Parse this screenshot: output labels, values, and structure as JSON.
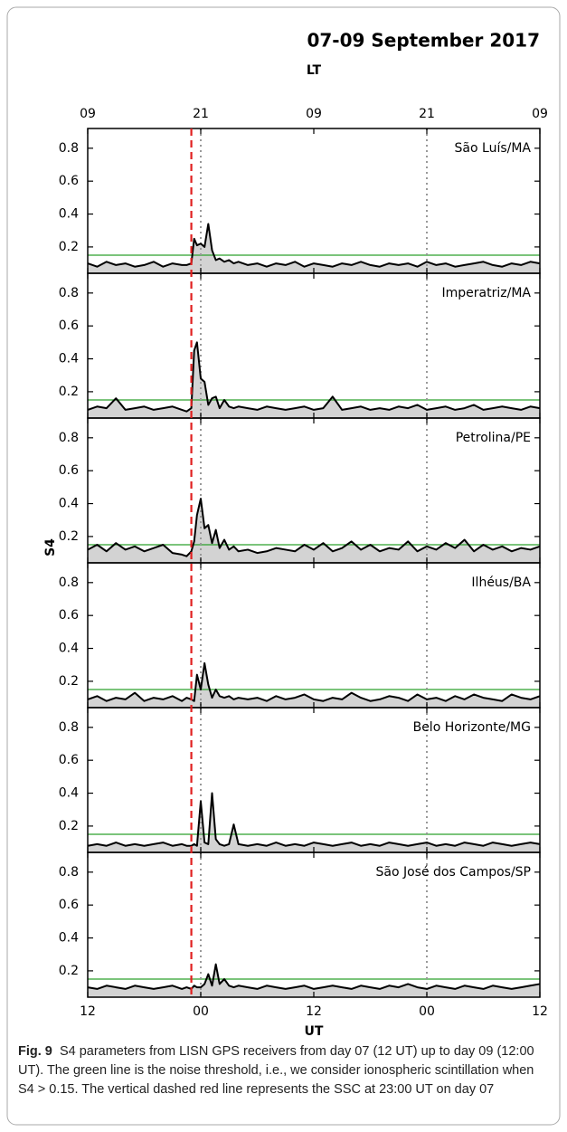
{
  "title": "07-09 September 2017",
  "top_label": "LT",
  "xlabel": "UT",
  "ylabel": "S4",
  "top_xticks": [
    {
      "value": 0,
      "label": "09"
    },
    {
      "value": 12,
      "label": "21"
    },
    {
      "value": 24,
      "label": "09"
    },
    {
      "value": 36,
      "label": "21"
    },
    {
      "value": 48,
      "label": "09"
    }
  ],
  "threshold": 0.15,
  "threshold_color": "#2ca02c",
  "ssc_x": 11,
  "ssc_color": "#e02020",
  "dotted_x": [
    12,
    36
  ],
  "chart_data": [
    {
      "type": "line",
      "title": "São Luís/MA",
      "color": "#000000",
      "fill": "#d3d3d3",
      "xlim": [
        0,
        48
      ],
      "ylim": [
        0.04,
        0.92
      ],
      "yticks": [
        0.2,
        0.4,
        0.6,
        0.8
      ],
      "x": [
        0,
        1,
        2,
        3,
        4,
        5,
        6,
        7,
        8,
        9,
        10,
        10.5,
        11,
        11.3,
        11.6,
        12,
        12.4,
        12.8,
        13.2,
        13.6,
        14,
        14.5,
        15,
        15.5,
        16,
        17,
        18,
        19,
        20,
        21,
        22,
        23,
        24,
        25,
        26,
        27,
        28,
        29,
        30,
        31,
        32,
        33,
        34,
        35,
        36,
        37,
        38,
        39,
        40,
        41,
        42,
        43,
        44,
        45,
        46,
        47,
        48
      ],
      "values": [
        0.1,
        0.08,
        0.11,
        0.09,
        0.1,
        0.08,
        0.09,
        0.11,
        0.08,
        0.1,
        0.09,
        0.09,
        0.1,
        0.25,
        0.21,
        0.22,
        0.2,
        0.34,
        0.18,
        0.12,
        0.13,
        0.11,
        0.12,
        0.1,
        0.11,
        0.09,
        0.1,
        0.08,
        0.1,
        0.09,
        0.11,
        0.08,
        0.1,
        0.09,
        0.08,
        0.1,
        0.09,
        0.11,
        0.09,
        0.08,
        0.1,
        0.09,
        0.1,
        0.08,
        0.11,
        0.09,
        0.1,
        0.08,
        0.09,
        0.1,
        0.11,
        0.09,
        0.08,
        0.1,
        0.09,
        0.11,
        0.1
      ]
    },
    {
      "type": "line",
      "title": "Imperatriz/MA",
      "color": "#000000",
      "fill": "#d3d3d3",
      "xlim": [
        0,
        48
      ],
      "ylim": [
        0.04,
        0.92
      ],
      "yticks": [
        0.2,
        0.4,
        0.6,
        0.8
      ],
      "x": [
        0,
        1,
        2,
        3,
        4,
        5,
        6,
        7,
        8,
        9,
        10,
        10.5,
        11,
        11.3,
        11.6,
        12,
        12.4,
        12.8,
        13.2,
        13.6,
        14,
        14.5,
        15,
        15.5,
        16,
        17,
        18,
        19,
        20,
        21,
        22,
        23,
        24,
        25,
        26,
        27,
        28,
        29,
        30,
        31,
        32,
        33,
        34,
        35,
        36,
        37,
        38,
        39,
        40,
        41,
        42,
        43,
        44,
        45,
        46,
        47,
        48
      ],
      "values": [
        0.09,
        0.11,
        0.1,
        0.16,
        0.09,
        0.1,
        0.11,
        0.09,
        0.1,
        0.11,
        0.09,
        0.08,
        0.1,
        0.45,
        0.5,
        0.28,
        0.26,
        0.12,
        0.16,
        0.17,
        0.1,
        0.15,
        0.11,
        0.1,
        0.11,
        0.1,
        0.09,
        0.11,
        0.1,
        0.09,
        0.1,
        0.11,
        0.09,
        0.1,
        0.17,
        0.09,
        0.1,
        0.11,
        0.09,
        0.1,
        0.09,
        0.11,
        0.1,
        0.12,
        0.09,
        0.1,
        0.11,
        0.09,
        0.1,
        0.12,
        0.09,
        0.1,
        0.11,
        0.1,
        0.09,
        0.11,
        0.1
      ]
    },
    {
      "type": "line",
      "title": "Petrolina/PE",
      "color": "#000000",
      "fill": "#d3d3d3",
      "xlim": [
        0,
        48
      ],
      "ylim": [
        0.04,
        0.92
      ],
      "yticks": [
        0.2,
        0.4,
        0.6,
        0.8
      ],
      "x": [
        0,
        1,
        2,
        3,
        4,
        5,
        6,
        7,
        8,
        9,
        10,
        10.5,
        11,
        11.3,
        11.6,
        12,
        12.4,
        12.8,
        13.2,
        13.6,
        14,
        14.5,
        15,
        15.5,
        16,
        17,
        18,
        19,
        20,
        21,
        22,
        23,
        24,
        25,
        26,
        27,
        28,
        29,
        30,
        31,
        32,
        33,
        34,
        35,
        36,
        37,
        38,
        39,
        40,
        41,
        42,
        43,
        44,
        45,
        46,
        47,
        48
      ],
      "values": [
        0.12,
        0.15,
        0.11,
        0.16,
        0.12,
        0.14,
        0.11,
        0.13,
        0.15,
        0.1,
        0.09,
        0.08,
        0.11,
        0.17,
        0.33,
        0.43,
        0.25,
        0.27,
        0.16,
        0.24,
        0.13,
        0.18,
        0.12,
        0.14,
        0.11,
        0.12,
        0.1,
        0.11,
        0.13,
        0.12,
        0.11,
        0.15,
        0.12,
        0.16,
        0.11,
        0.13,
        0.17,
        0.12,
        0.15,
        0.11,
        0.13,
        0.12,
        0.17,
        0.11,
        0.14,
        0.12,
        0.16,
        0.13,
        0.18,
        0.11,
        0.15,
        0.12,
        0.14,
        0.11,
        0.13,
        0.12,
        0.14
      ]
    },
    {
      "type": "line",
      "title": "Ilhéus/BA",
      "color": "#000000",
      "fill": "#d3d3d3",
      "xlim": [
        0,
        48
      ],
      "ylim": [
        0.04,
        0.92
      ],
      "yticks": [
        0.2,
        0.4,
        0.6,
        0.8
      ],
      "x": [
        0,
        1,
        2,
        3,
        4,
        5,
        6,
        7,
        8,
        9,
        10,
        10.5,
        11,
        11.3,
        11.6,
        12,
        12.4,
        12.8,
        13.2,
        13.6,
        14,
        14.5,
        15,
        15.5,
        16,
        17,
        18,
        19,
        20,
        21,
        22,
        23,
        24,
        25,
        26,
        27,
        28,
        29,
        30,
        31,
        32,
        33,
        34,
        35,
        36,
        37,
        38,
        39,
        40,
        41,
        42,
        43,
        44,
        45,
        46,
        47,
        48
      ],
      "values": [
        0.09,
        0.11,
        0.08,
        0.1,
        0.09,
        0.13,
        0.08,
        0.1,
        0.09,
        0.11,
        0.08,
        0.1,
        0.09,
        0.08,
        0.24,
        0.15,
        0.31,
        0.18,
        0.1,
        0.15,
        0.11,
        0.1,
        0.11,
        0.09,
        0.1,
        0.09,
        0.1,
        0.08,
        0.11,
        0.09,
        0.1,
        0.12,
        0.09,
        0.08,
        0.1,
        0.09,
        0.13,
        0.1,
        0.08,
        0.09,
        0.11,
        0.1,
        0.08,
        0.12,
        0.09,
        0.1,
        0.08,
        0.11,
        0.09,
        0.12,
        0.1,
        0.09,
        0.08,
        0.12,
        0.1,
        0.09,
        0.11
      ]
    },
    {
      "type": "line",
      "title": "Belo Horizonte/MG",
      "color": "#000000",
      "fill": "#d3d3d3",
      "xlim": [
        0,
        48
      ],
      "ylim": [
        0.04,
        0.92
      ],
      "yticks": [
        0.2,
        0.4,
        0.6,
        0.8
      ],
      "x": [
        0,
        1,
        2,
        3,
        4,
        5,
        6,
        7,
        8,
        9,
        10,
        10.5,
        11,
        11.3,
        11.6,
        12,
        12.4,
        12.8,
        13.2,
        13.6,
        14,
        14.5,
        15,
        15.5,
        16,
        17,
        18,
        19,
        20,
        21,
        22,
        23,
        24,
        25,
        26,
        27,
        28,
        29,
        30,
        31,
        32,
        33,
        34,
        35,
        36,
        37,
        38,
        39,
        40,
        41,
        42,
        43,
        44,
        45,
        46,
        47,
        48
      ],
      "values": [
        0.08,
        0.09,
        0.08,
        0.1,
        0.08,
        0.09,
        0.08,
        0.09,
        0.1,
        0.08,
        0.09,
        0.08,
        0.08,
        0.09,
        0.08,
        0.35,
        0.1,
        0.09,
        0.4,
        0.12,
        0.09,
        0.08,
        0.09,
        0.21,
        0.09,
        0.08,
        0.09,
        0.08,
        0.1,
        0.08,
        0.09,
        0.08,
        0.1,
        0.09,
        0.08,
        0.09,
        0.1,
        0.08,
        0.09,
        0.08,
        0.1,
        0.09,
        0.08,
        0.09,
        0.1,
        0.08,
        0.09,
        0.08,
        0.1,
        0.09,
        0.08,
        0.1,
        0.09,
        0.08,
        0.09,
        0.1,
        0.09
      ]
    },
    {
      "type": "line",
      "title": "São José dos Campos/SP",
      "color": "#000000",
      "fill": "#d3d3d3",
      "xlim": [
        0,
        48
      ],
      "ylim": [
        0.04,
        0.92
      ],
      "yticks": [
        0.2,
        0.4,
        0.6,
        0.8
      ],
      "xticks": [
        {
          "value": 0,
          "label": "12"
        },
        {
          "value": 12,
          "label": "00"
        },
        {
          "value": 24,
          "label": "12"
        },
        {
          "value": 36,
          "label": "00"
        },
        {
          "value": 48,
          "label": "12"
        }
      ],
      "x": [
        0,
        1,
        2,
        3,
        4,
        5,
        6,
        7,
        8,
        9,
        10,
        10.5,
        11,
        11.3,
        11.6,
        12,
        12.4,
        12.8,
        13.2,
        13.6,
        14,
        14.5,
        15,
        15.5,
        16,
        17,
        18,
        19,
        20,
        21,
        22,
        23,
        24,
        25,
        26,
        27,
        28,
        29,
        30,
        31,
        32,
        33,
        34,
        35,
        36,
        37,
        38,
        39,
        40,
        41,
        42,
        43,
        44,
        45,
        46,
        47,
        48
      ],
      "values": [
        0.1,
        0.09,
        0.11,
        0.1,
        0.09,
        0.11,
        0.1,
        0.09,
        0.1,
        0.11,
        0.09,
        0.1,
        0.09,
        0.11,
        0.1,
        0.1,
        0.12,
        0.18,
        0.11,
        0.24,
        0.12,
        0.15,
        0.11,
        0.1,
        0.11,
        0.1,
        0.09,
        0.11,
        0.1,
        0.09,
        0.1,
        0.11,
        0.09,
        0.1,
        0.11,
        0.1,
        0.09,
        0.11,
        0.1,
        0.09,
        0.11,
        0.1,
        0.12,
        0.1,
        0.09,
        0.11,
        0.1,
        0.09,
        0.11,
        0.1,
        0.09,
        0.11,
        0.1,
        0.09,
        0.1,
        0.11,
        0.12
      ]
    }
  ],
  "caption": {
    "label": "Fig. 9",
    "text": "S4 parameters from LISN GPS receivers from day 07 (12 UT) up to day 09 (12:00 UT). The green line is the noise threshold, i.e., we consider ionospheric scintillation when S4 > 0.15. The vertical dashed red line represents the SSC at 23:00 UT on day 07"
  }
}
